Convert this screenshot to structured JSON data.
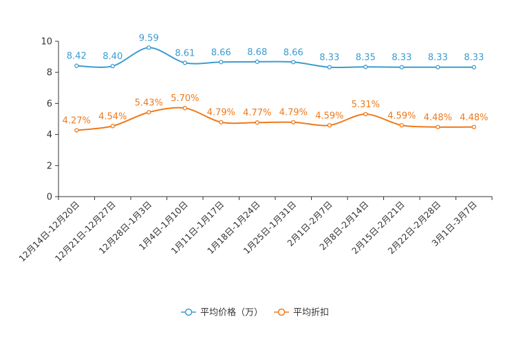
{
  "chart_data": {
    "type": "line",
    "categories": [
      "12月14日-12月20日",
      "12月21日-12月27日",
      "12月28日-1月3日",
      "1月4日-1月10日",
      "1月11日-1月17日",
      "1月18日-1月24日",
      "1月25日-1月31日",
      "2月1日-2月7日",
      "2月8日-2月14日",
      "2月15日-2月21日",
      "2月22日-2月28日",
      "3月1日-3月7日"
    ],
    "ylim": [
      0,
      10
    ],
    "yticks": [
      0,
      2,
      4,
      6,
      8,
      10
    ],
    "series": [
      {
        "name": "平均价格（万）",
        "color": "#3a9bd0",
        "values": [
          8.42,
          8.4,
          9.59,
          8.61,
          8.66,
          8.68,
          8.66,
          8.33,
          8.35,
          8.33,
          8.33,
          8.33
        ],
        "labels": [
          "8.42",
          "8.40",
          "9.59",
          "8.61",
          "8.66",
          "8.68",
          "8.66",
          "8.33",
          "8.35",
          "8.33",
          "8.33",
          "8.33"
        ]
      },
      {
        "name": "平均折扣",
        "color": "#f07818",
        "values": [
          4.27,
          4.54,
          5.43,
          5.7,
          4.79,
          4.77,
          4.79,
          4.59,
          5.31,
          4.59,
          4.48,
          4.48
        ],
        "labels": [
          "4.27%",
          "4.54%",
          "5.43%",
          "5.70%",
          "4.79%",
          "4.77%",
          "4.79%",
          "4.59%",
          "5.31%",
          "4.59%",
          "4.48%",
          "4.48%"
        ]
      }
    ],
    "legend_position": "bottom-center"
  }
}
